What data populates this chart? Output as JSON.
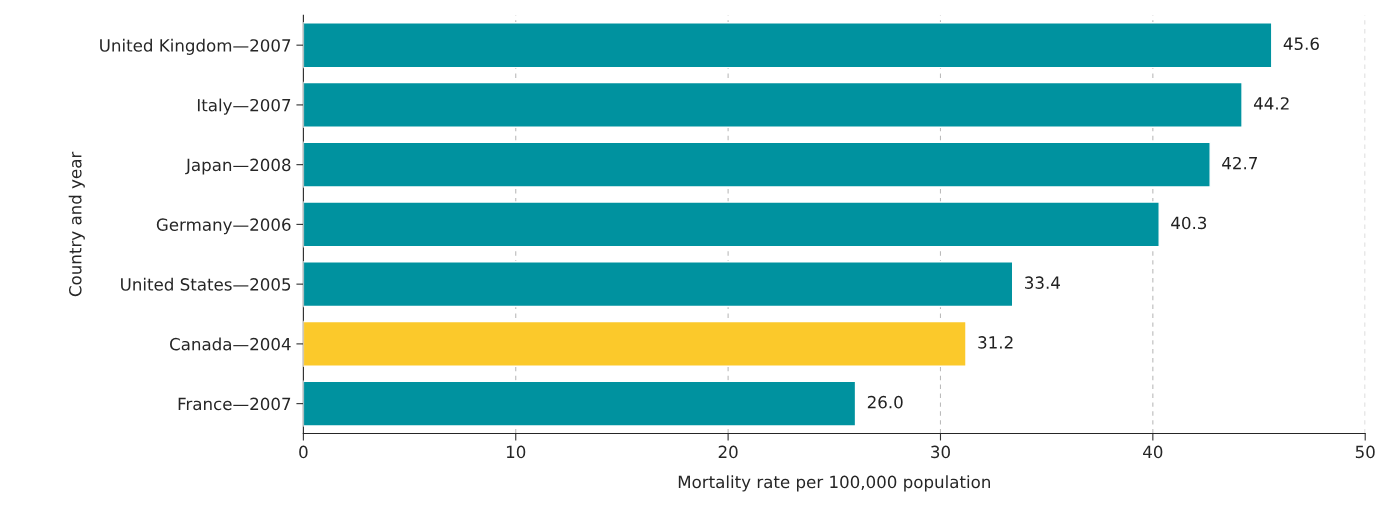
{
  "chart_data": {
    "type": "bar",
    "orientation": "horizontal",
    "categories": [
      "United Kingdom—2007",
      "Italy—2007",
      "Japan—2008",
      "Germany—2006",
      "United States—2005",
      "Canada—2004",
      "France—2007"
    ],
    "values": [
      45.6,
      44.2,
      42.7,
      40.3,
      33.4,
      31.2,
      26.0
    ],
    "colors": [
      "#00929f",
      "#00929f",
      "#00929f",
      "#00929f",
      "#00929f",
      "#fbc92b",
      "#00929f"
    ],
    "value_labels": [
      "45.6",
      "44.2",
      "42.7",
      "40.3",
      "33.4",
      "31.2",
      "26.0"
    ],
    "xlabel": "Mortality rate per 100,000 population",
    "ylabel": "Country and year",
    "xlim": [
      0,
      50
    ],
    "xticks": [
      0,
      10,
      20,
      30,
      40,
      50
    ],
    "grid": "x",
    "legend": false
  }
}
